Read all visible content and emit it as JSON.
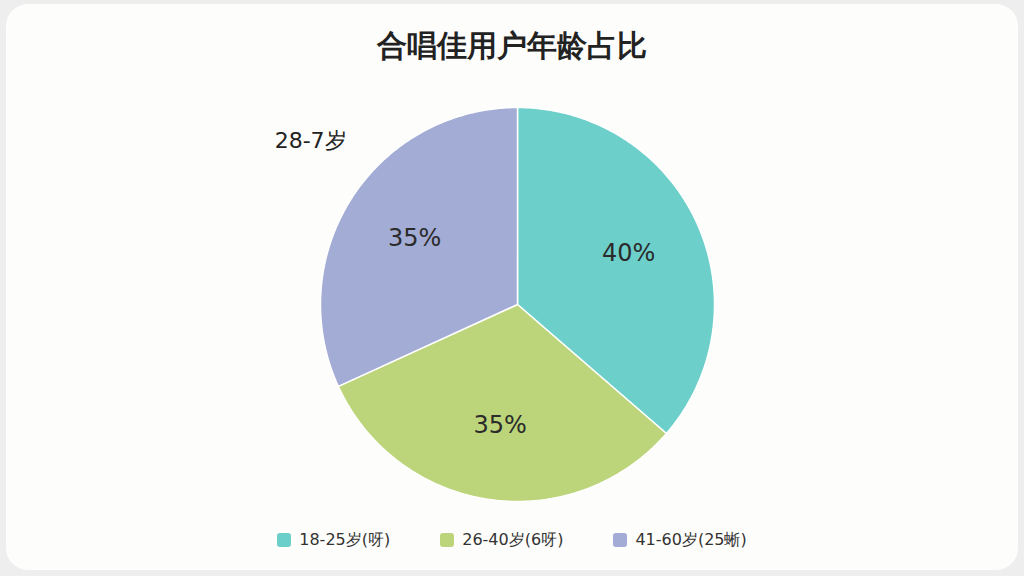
{
  "chart_data": {
    "type": "pie",
    "title": "合唱佳用户年龄占比",
    "categories": [
      "18-25岁(呀)",
      "26-40岁(6呀)",
      "41-60岁(25蜥)"
    ],
    "values": [
      40,
      35,
      35
    ],
    "value_labels": [
      "40%",
      "35%",
      "35%"
    ],
    "colors": [
      "#6dcfca",
      "#bcd57a",
      "#a3acd4"
    ],
    "data_labels": true,
    "legend": "bottom",
    "annotations": [
      "28-7岁"
    ]
  }
}
